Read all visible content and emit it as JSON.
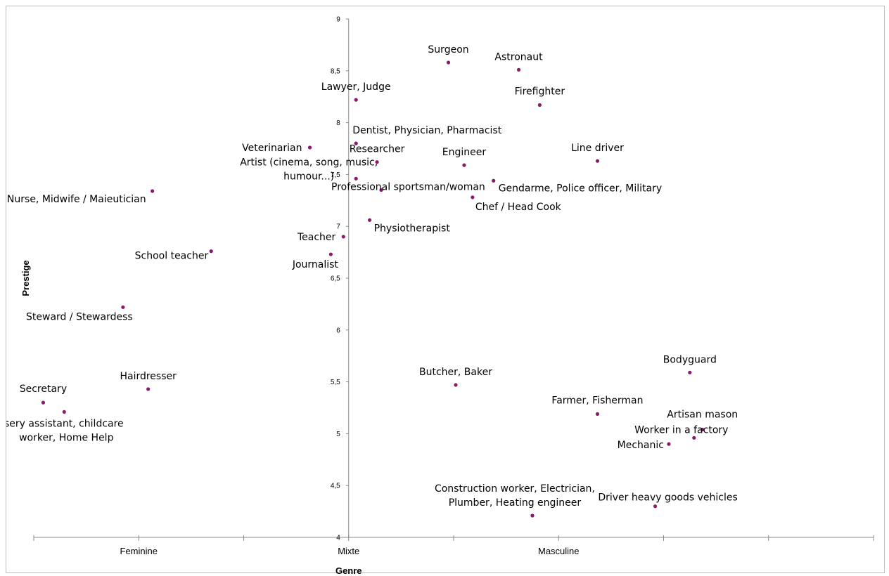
{
  "chart_data": {
    "type": "scatter",
    "xlabel": "Genre",
    "ylabel": "Prestige",
    "x_categories": [
      "Feminine",
      "Mixte",
      "Masculine"
    ],
    "xlim": [
      -3,
      5
    ],
    "ylim": [
      4,
      9
    ],
    "yticks": [
      "4",
      "4,5",
      "5",
      "5,5",
      "6",
      "6,5",
      "7",
      "7,5",
      "8",
      "8,5",
      "9"
    ],
    "grid": false,
    "legend": "none",
    "marker_color": "#8B1A6B",
    "points": [
      {
        "label": "Surgeon",
        "x": 0.95,
        "y": 8.58
      },
      {
        "label": "Astronaut",
        "x": 1.62,
        "y": 8.51
      },
      {
        "label": "Lawyer, Judge",
        "x": 0.07,
        "y": 8.22
      },
      {
        "label": "Firefighter",
        "x": 1.82,
        "y": 8.17
      },
      {
        "label": "Dentist, Physician, Pharmacist",
        "x": 0.07,
        "y": 7.8
      },
      {
        "label": "Veterinarian",
        "x": -0.37,
        "y": 7.76
      },
      {
        "label": "Researcher",
        "x": 0.27,
        "y": 7.62
      },
      {
        "label": "Engineer",
        "x": 1.1,
        "y": 7.59
      },
      {
        "label": "Line driver",
        "x": 2.37,
        "y": 7.63
      },
      {
        "label": "Artist (cinema, song, music, humour...)",
        "x": 0.07,
        "y": 7.46
      },
      {
        "label": "Gendarme, Police officer, Military",
        "x": 1.38,
        "y": 7.44
      },
      {
        "label": "Professional sportsman/woman",
        "x": 0.31,
        "y": 7.35
      },
      {
        "label": "Chef / Head Cook",
        "x": 1.18,
        "y": 7.28
      },
      {
        "label": "Nurse, Midwife / Maieutician",
        "x": -1.87,
        "y": 7.34
      },
      {
        "label": "Physiotherapist",
        "x": 0.2,
        "y": 7.06
      },
      {
        "label": "Teacher",
        "x": -0.05,
        "y": 6.9
      },
      {
        "label": "School teacher",
        "x": -1.31,
        "y": 6.76
      },
      {
        "label": "Journalist",
        "x": -0.17,
        "y": 6.73
      },
      {
        "label": "Steward / Stewardess",
        "x": -2.15,
        "y": 6.22
      },
      {
        "label": "Bodyguard",
        "x": 3.25,
        "y": 5.59
      },
      {
        "label": "Butcher, Baker",
        "x": 1.02,
        "y": 5.47
      },
      {
        "label": "Hairdresser",
        "x": -1.91,
        "y": 5.43
      },
      {
        "label": "Secretary",
        "x": -2.91,
        "y": 5.3
      },
      {
        "label": "Nursery assistant, childcare worker, Home Help",
        "x": -2.71,
        "y": 5.21
      },
      {
        "label": "Farmer, Fisherman",
        "x": 2.37,
        "y": 5.19
      },
      {
        "label": "Artisan mason",
        "x": 3.37,
        "y": 5.04
      },
      {
        "label": "Worker in a factory",
        "x": 3.29,
        "y": 4.96
      },
      {
        "label": "Mechanic",
        "x": 3.05,
        "y": 4.9
      },
      {
        "label": "Driver heavy goods vehicles",
        "x": 2.92,
        "y": 4.3
      },
      {
        "label": "Construction worker, Electrician, Plumber, Heating engineer",
        "x": 1.75,
        "y": 4.21
      }
    ]
  }
}
